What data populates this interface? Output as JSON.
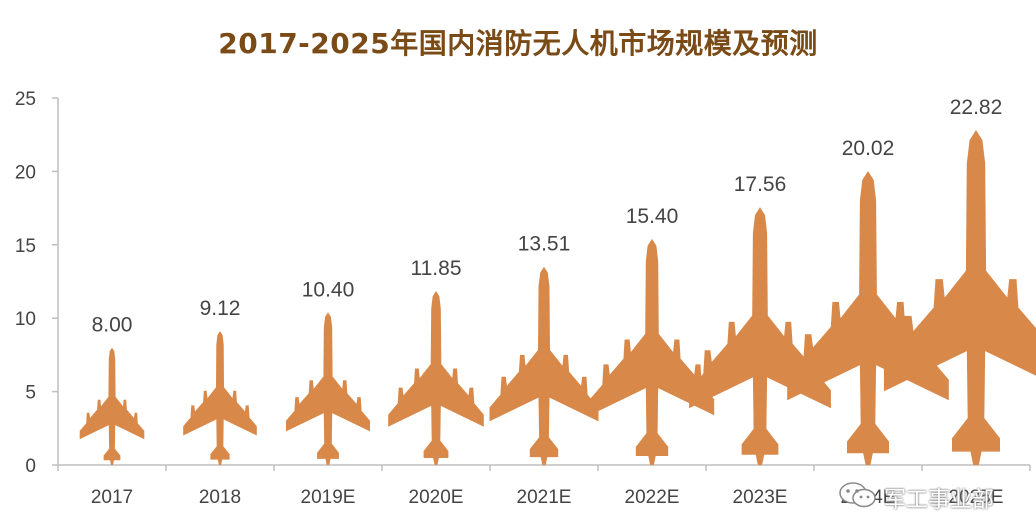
{
  "chart_data": {
    "type": "bar",
    "title": "2017-2025年国内消防无人机市场规模及预测",
    "categories": [
      "2017",
      "2018",
      "2019E",
      "2020E",
      "2021E",
      "2022E",
      "2023E",
      "2024E",
      "2025E"
    ],
    "values": [
      8.0,
      9.12,
      10.4,
      11.85,
      13.51,
      15.4,
      17.56,
      20.02,
      22.82
    ],
    "data_labels": [
      "8.00",
      "9.12",
      "10.40",
      "11.85",
      "13.51",
      "15.40",
      "17.56",
      "20.02",
      "22.82"
    ],
    "yticks": [
      "0",
      "5",
      "10",
      "15",
      "20",
      "25"
    ],
    "ylim": [
      0,
      25
    ],
    "grid": false,
    "legend": "none",
    "mark_shape": "airplane-icon",
    "colors": {
      "mark": "#d8894a",
      "title": "#7a4a17",
      "axis": "#bfbfbf",
      "text": "#444444"
    }
  },
  "watermark": {
    "text": "军工事业部",
    "icon": "wechat-icon"
  }
}
